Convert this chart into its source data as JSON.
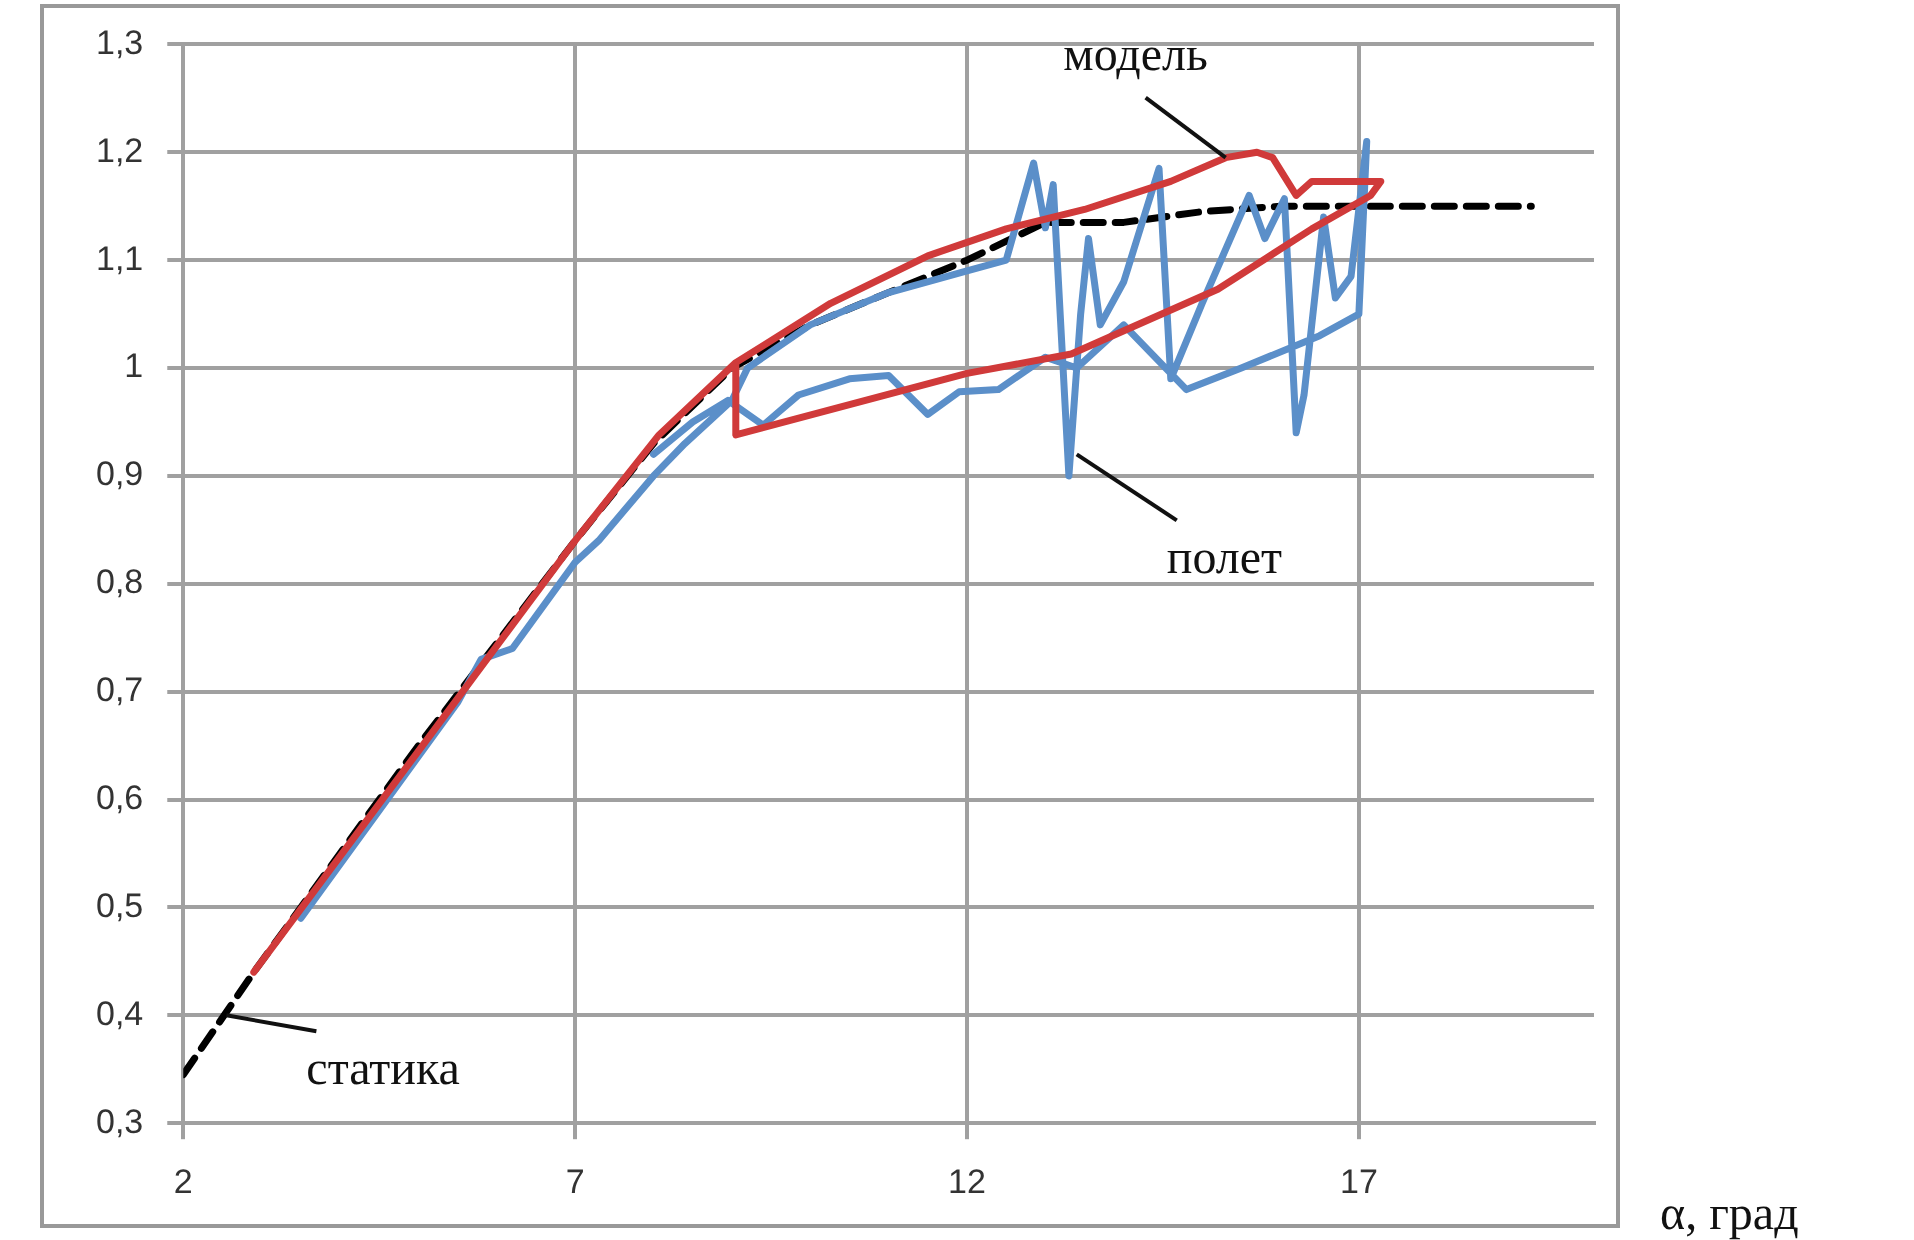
{
  "chart_data": {
    "type": "line",
    "xlabel": "α, град",
    "xlim": [
      2,
      20
    ],
    "xticks": [
      2,
      7,
      12,
      17
    ],
    "ylim": [
      0.3,
      1.3
    ],
    "yticks": [
      {
        "value": 0.3,
        "label": "0,3"
      },
      {
        "value": 0.4,
        "label": "0,4"
      },
      {
        "value": 0.5,
        "label": "0,5"
      },
      {
        "value": 0.6,
        "label": "0,6"
      },
      {
        "value": 0.7,
        "label": "0,7"
      },
      {
        "value": 0.8,
        "label": "0,8"
      },
      {
        "value": 0.9,
        "label": "0,9"
      },
      1,
      {
        "value": 1.1,
        "label": "1,1"
      },
      {
        "value": 1.2,
        "label": "1,2"
      },
      {
        "value": 1.3,
        "label": "1,3"
      }
    ],
    "grid": true,
    "legend": false,
    "marker": "none",
    "annotations": [
      {
        "text": "модель",
        "x": 15.3,
        "y": 1.195
      },
      {
        "text": "полет",
        "x": 13.4,
        "y": 0.92
      },
      {
        "text": "статика",
        "x": 2.55,
        "y": 0.4
      }
    ],
    "series": [
      {
        "type": "line",
        "line_style": "dashed",
        "color": "#000000",
        "x": [
          2,
          2.9,
          5,
          7,
          8,
          9,
          10,
          12,
          13,
          14,
          15,
          16,
          17,
          19.2
        ],
        "values": [
          0.345,
          0.44,
          0.65,
          0.84,
          0.93,
          1.0,
          1.04,
          1.1,
          1.135,
          1.135,
          1.145,
          1.15,
          1.15,
          1.15
        ]
      },
      {
        "type": "line",
        "line_style": "solid",
        "color": "#5b8fc9",
        "x": [
          3.5,
          4.5,
          5.5,
          5.8,
          6.2,
          7,
          7.3,
          8,
          8.4,
          9,
          9.2,
          10,
          11,
          12,
          12.5,
          12.85,
          13.0,
          13.1,
          13.3,
          13.45,
          13.55,
          13.7,
          14.0,
          14.45,
          14.6,
          15.0,
          15.6,
          15.8,
          16.05,
          16.2,
          16.3,
          16.55,
          16.7,
          16.9,
          17.1,
          17.0,
          16.5,
          15.5,
          14.8,
          14.0,
          13.4,
          13.0,
          12.4,
          11.9,
          11.5,
          11.0,
          10.5,
          9.85,
          9.4,
          8.95,
          8.5,
          8.0
        ],
        "values": [
          0.49,
          0.59,
          0.69,
          0.73,
          0.74,
          0.82,
          0.84,
          0.9,
          0.93,
          0.97,
          1.0,
          1.04,
          1.07,
          1.09,
          1.1,
          1.19,
          1.13,
          1.17,
          0.9,
          1.05,
          1.12,
          1.04,
          1.08,
          1.185,
          0.99,
          1.06,
          1.16,
          1.12,
          1.157,
          0.94,
          0.975,
          1.14,
          1.065,
          1.085,
          1.21,
          1.05,
          1.03,
          1.0,
          0.98,
          1.04,
          1.0,
          1.01,
          0.98,
          0.978,
          0.957,
          0.993,
          0.99,
          0.975,
          0.947,
          0.97,
          0.95,
          0.92
        ]
      },
      {
        "type": "line",
        "line_style": "solid",
        "color": "#d03a3a",
        "x": [
          2.9,
          7.0,
          8.07,
          9.05,
          10.26,
          11.5,
          12.5,
          13.5,
          14.6,
          15.3,
          15.7,
          15.9,
          16.2,
          16.4,
          17.28,
          17.15,
          16.4,
          15.2,
          13.33,
          12.0,
          9.05,
          9.05
        ],
        "values": [
          0.44,
          0.84,
          0.938,
          1.005,
          1.06,
          1.104,
          1.129,
          1.147,
          1.173,
          1.195,
          1.2,
          1.195,
          1.16,
          1.173,
          1.173,
          1.16,
          1.129,
          1.073,
          1.013,
          0.995,
          0.938,
          1.005
        ]
      }
    ]
  }
}
